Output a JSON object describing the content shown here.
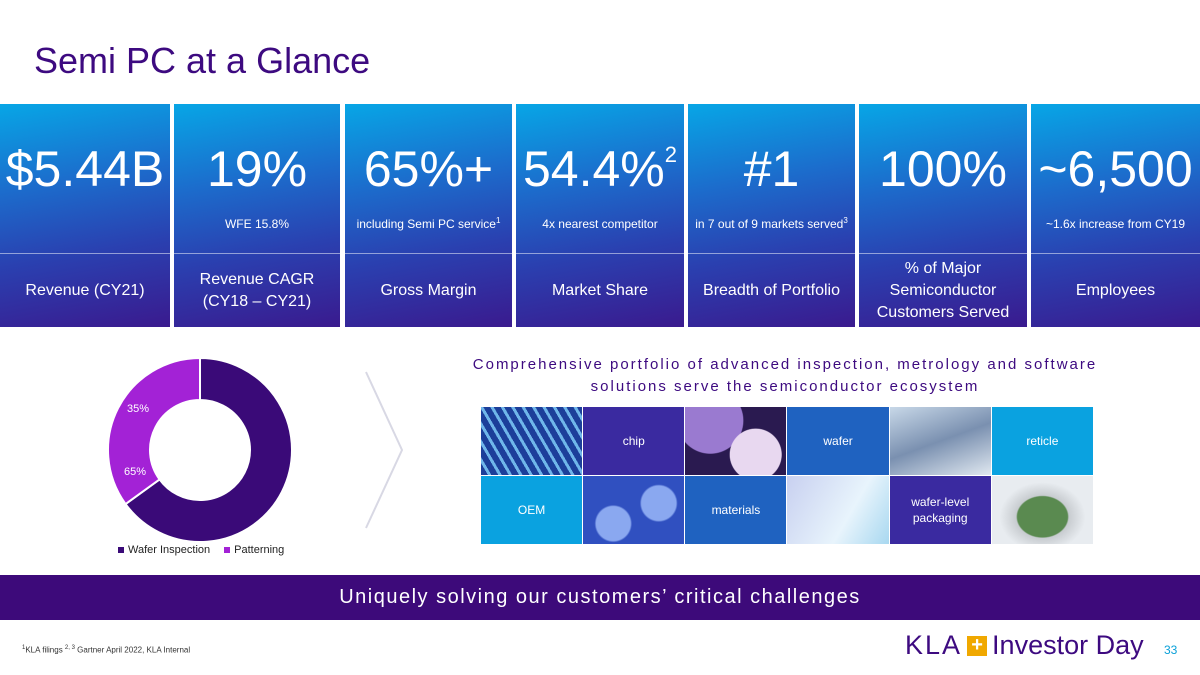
{
  "title": "Semi PC at a Glance",
  "tiles": [
    {
      "value": "$5.44B",
      "sup": "",
      "sub": "",
      "sub_sup": "",
      "sub2": "",
      "label": "Revenue (CY21)"
    },
    {
      "value": "19%",
      "sup": "",
      "sub": "WFE 15.8%",
      "sub_sup": "",
      "sub2": "",
      "label": "Revenue CAGR (CY18 – CY21)"
    },
    {
      "value": "65%+",
      "sup": "",
      "sub": "including Semi PC service",
      "sub_sup": "1",
      "sub2": "",
      "label": "Gross Margin"
    },
    {
      "value": "54.4%",
      "sup": "2",
      "sub": "4x nearest competitor",
      "sub_sup": "",
      "sub2": "",
      "label": "Market Share"
    },
    {
      "value": "#1",
      "sup": "",
      "sub": "in 7 out of 9 markets served",
      "sub_sup": "3",
      "sub2": "",
      "label": "Breadth of Portfolio"
    },
    {
      "value": "100%",
      "sup": "",
      "sub": "",
      "sub_sup": "",
      "sub2": "",
      "label": "% of Major Semiconductor Customers Served"
    },
    {
      "value": "~6,500",
      "sup": "",
      "sub": "~1.6x increase from CY19",
      "sub_sup": "",
      "sub2": "",
      "label": "Employees"
    }
  ],
  "chart_data": {
    "type": "pie",
    "donut": true,
    "series": [
      {
        "name": "Wafer Inspection",
        "value": 65,
        "label": "65%",
        "color": "#3a0a78"
      },
      {
        "name": "Patterning",
        "value": 35,
        "label": "35%",
        "color": "#a322d6"
      }
    ],
    "legend": "bottom"
  },
  "portfolio": {
    "heading": "Comprehensive portfolio of advanced inspection, metrology and software solutions serve the semiconductor ecosystem",
    "cells": [
      {
        "type": "image",
        "icon": "chip-die-image"
      },
      {
        "type": "label",
        "text": "chip",
        "color": "#3a2aa0"
      },
      {
        "type": "image",
        "icon": "wafers-image"
      },
      {
        "type": "label",
        "text": "wafer",
        "color": "#1f62c0"
      },
      {
        "type": "image",
        "icon": "reticle-tool-image"
      },
      {
        "type": "label",
        "text": "reticle",
        "color": "#0aa2e0"
      },
      {
        "type": "label",
        "text": "OEM",
        "color": "#0aa2e0"
      },
      {
        "type": "image",
        "icon": "wafer-trays-image"
      },
      {
        "type": "label",
        "text": "materials",
        "color": "#1f62c0"
      },
      {
        "type": "image",
        "icon": "lab-glassware-image"
      },
      {
        "type": "label",
        "text": "wafer-level packaging",
        "color": "#3a2aa0"
      },
      {
        "type": "image",
        "icon": "wafer-carrier-image"
      }
    ]
  },
  "banner": "Uniquely solving our customers’ critical challenges",
  "footer": {
    "note_sup1": "1",
    "note1": "KLA filings ",
    "note_sup2": "2, 3",
    "note2": " Gartner April 2022, KLA Internal",
    "logo": "KLA",
    "logo_tag": "Investor Day",
    "page": "33"
  }
}
